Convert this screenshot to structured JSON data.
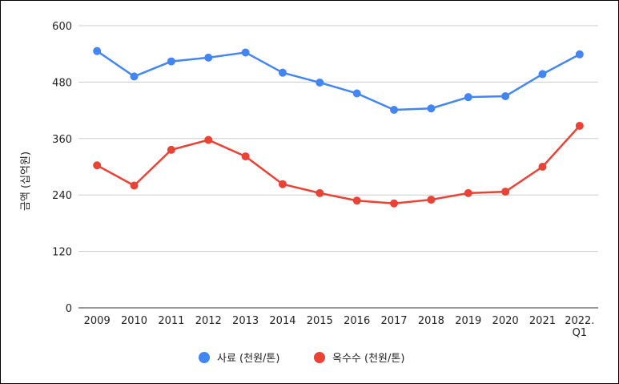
{
  "chart_data": {
    "type": "line",
    "title": "",
    "xlabel": "",
    "ylabel": "금액 (십억원)",
    "categories": [
      "2009",
      "2010",
      "2011",
      "2012",
      "2013",
      "2014",
      "2015",
      "2016",
      "2017",
      "2018",
      "2019",
      "2020",
      "2021",
      "2022.\nQ1"
    ],
    "ylim": [
      0,
      600
    ],
    "yticks": [
      0,
      120,
      240,
      360,
      480,
      600
    ],
    "grid": true,
    "legend_position": "bottom",
    "series": [
      {
        "name": "사료 (천원/톤)",
        "color": "#4285F4",
        "values": [
          546,
          492,
          524,
          532,
          543,
          500,
          479,
          456,
          421,
          424,
          448,
          450,
          497,
          539
        ]
      },
      {
        "name": "옥수수 (천원/톤)",
        "color": "#EA4335",
        "values": [
          303,
          260,
          336,
          357,
          322,
          263,
          244,
          228,
          222,
          230,
          244,
          247,
          300,
          387
        ]
      }
    ]
  }
}
